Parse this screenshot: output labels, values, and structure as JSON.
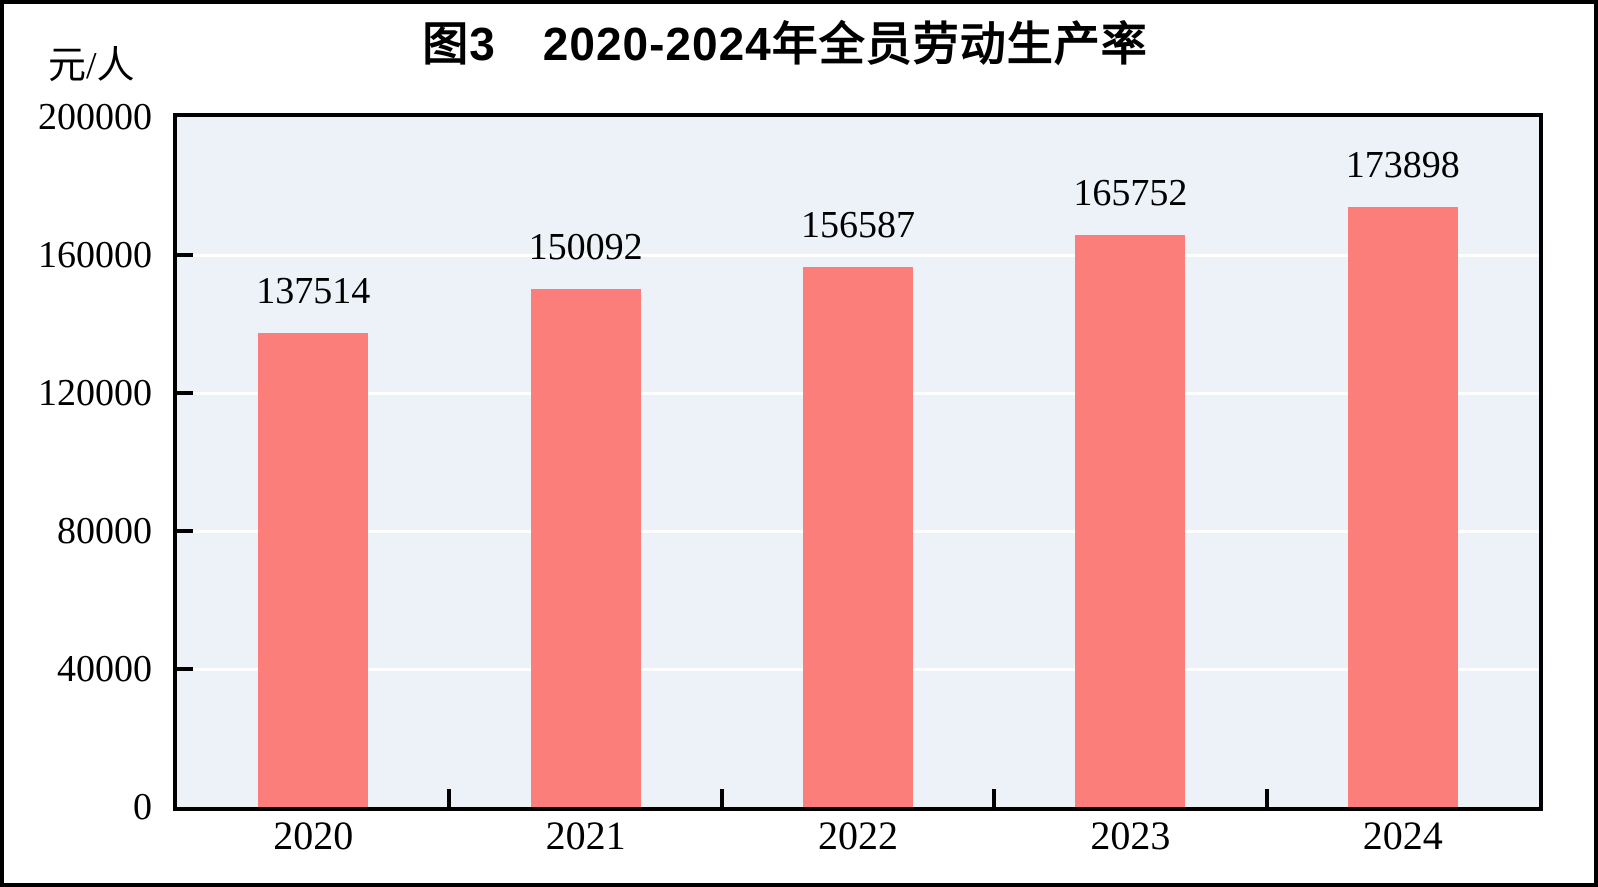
{
  "page": {
    "background": "#FFFFFF",
    "frame_color": "#000000"
  },
  "chart_data": {
    "type": "bar",
    "title": "图3　2020-2024年全员劳动生产率",
    "unit_label": "元/人",
    "categories": [
      "2020",
      "2021",
      "2022",
      "2023",
      "2024"
    ],
    "values": [
      137514,
      150092,
      156587,
      165752,
      173898
    ],
    "value_labels": [
      "137514",
      "150092",
      "156587",
      "165752",
      "173898"
    ],
    "xlabel": "",
    "ylabel": "元/人",
    "ylim": [
      0,
      200000
    ],
    "yticks": [
      0,
      40000,
      80000,
      120000,
      160000,
      200000
    ],
    "ytick_labels": [
      "0",
      "40000",
      "80000",
      "120000",
      "160000",
      "200000"
    ],
    "grid": true,
    "legend": "none",
    "colors": {
      "bar": "#FB7E7B",
      "plot_background": "#ECF2F8",
      "gridline": "#FFFFFF",
      "axis": "#000000",
      "text": "#000000"
    }
  }
}
